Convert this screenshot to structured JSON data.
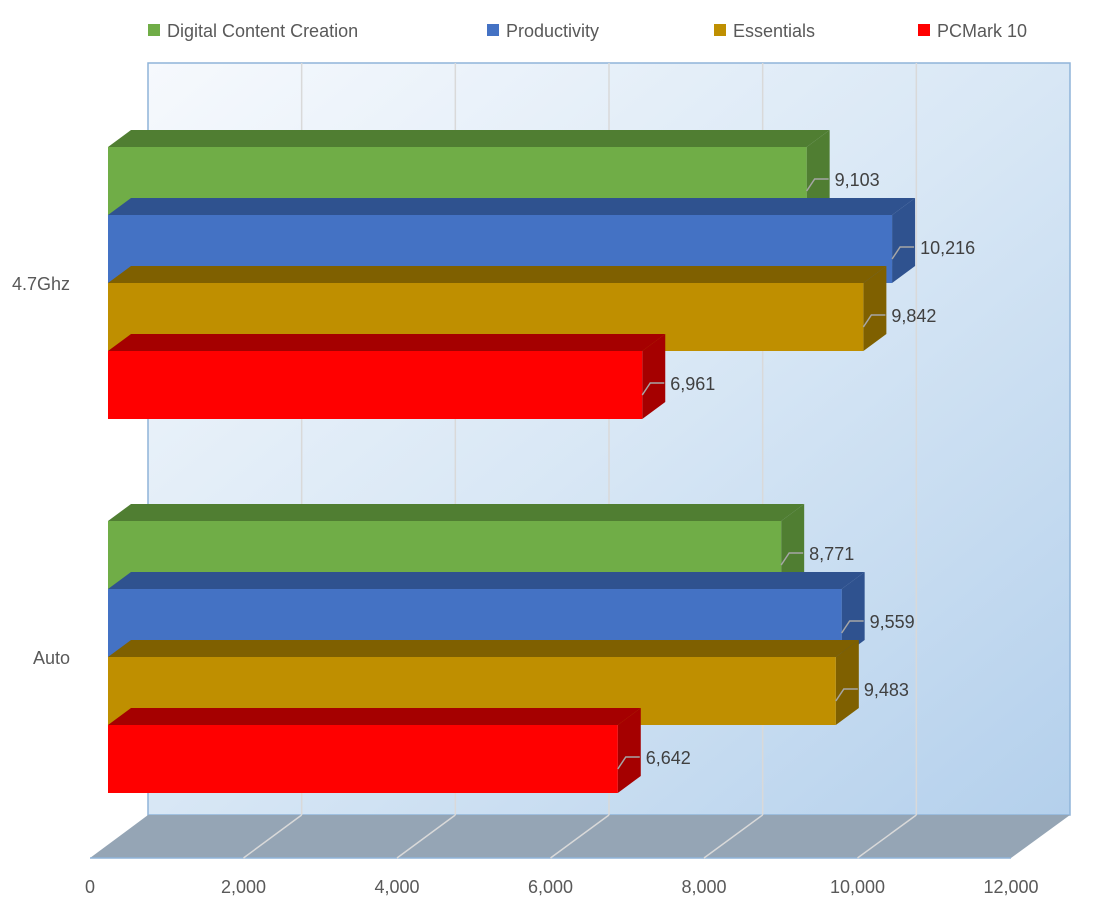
{
  "chart_data": {
    "type": "bar",
    "orientation": "horizontal",
    "style": "3d-clustered",
    "categories": [
      "4.7Ghz",
      "Auto"
    ],
    "series": [
      {
        "name": "Digital Content Creation",
        "color": "#70ad47",
        "side_color": "#507e32",
        "values": [
          9103,
          8771
        ],
        "labels": [
          "9,103",
          "8,771"
        ]
      },
      {
        "name": "Productivity",
        "color": "#4472c4",
        "side_color": "#2f528f",
        "values": [
          10216,
          9559
        ],
        "labels": [
          "10,216",
          "9,559"
        ]
      },
      {
        "name": "Essentials",
        "color": "#bf8f00",
        "side_color": "#7f6000",
        "values": [
          9842,
          9483
        ],
        "labels": [
          "9,842",
          "9,483"
        ]
      },
      {
        "name": "PCMark 10",
        "color": "#ff0000",
        "side_color": "#a50000",
        "values": [
          6961,
          6642
        ],
        "labels": [
          "6,961",
          "6,642"
        ]
      }
    ],
    "xlim": [
      0,
      12000
    ],
    "xticks": [
      "0",
      "2,000",
      "4,000",
      "6,000",
      "8,000",
      "10,000",
      "12,000"
    ],
    "title": "",
    "xlabel": "",
    "ylabel": "",
    "grid": true,
    "legend": "top"
  }
}
